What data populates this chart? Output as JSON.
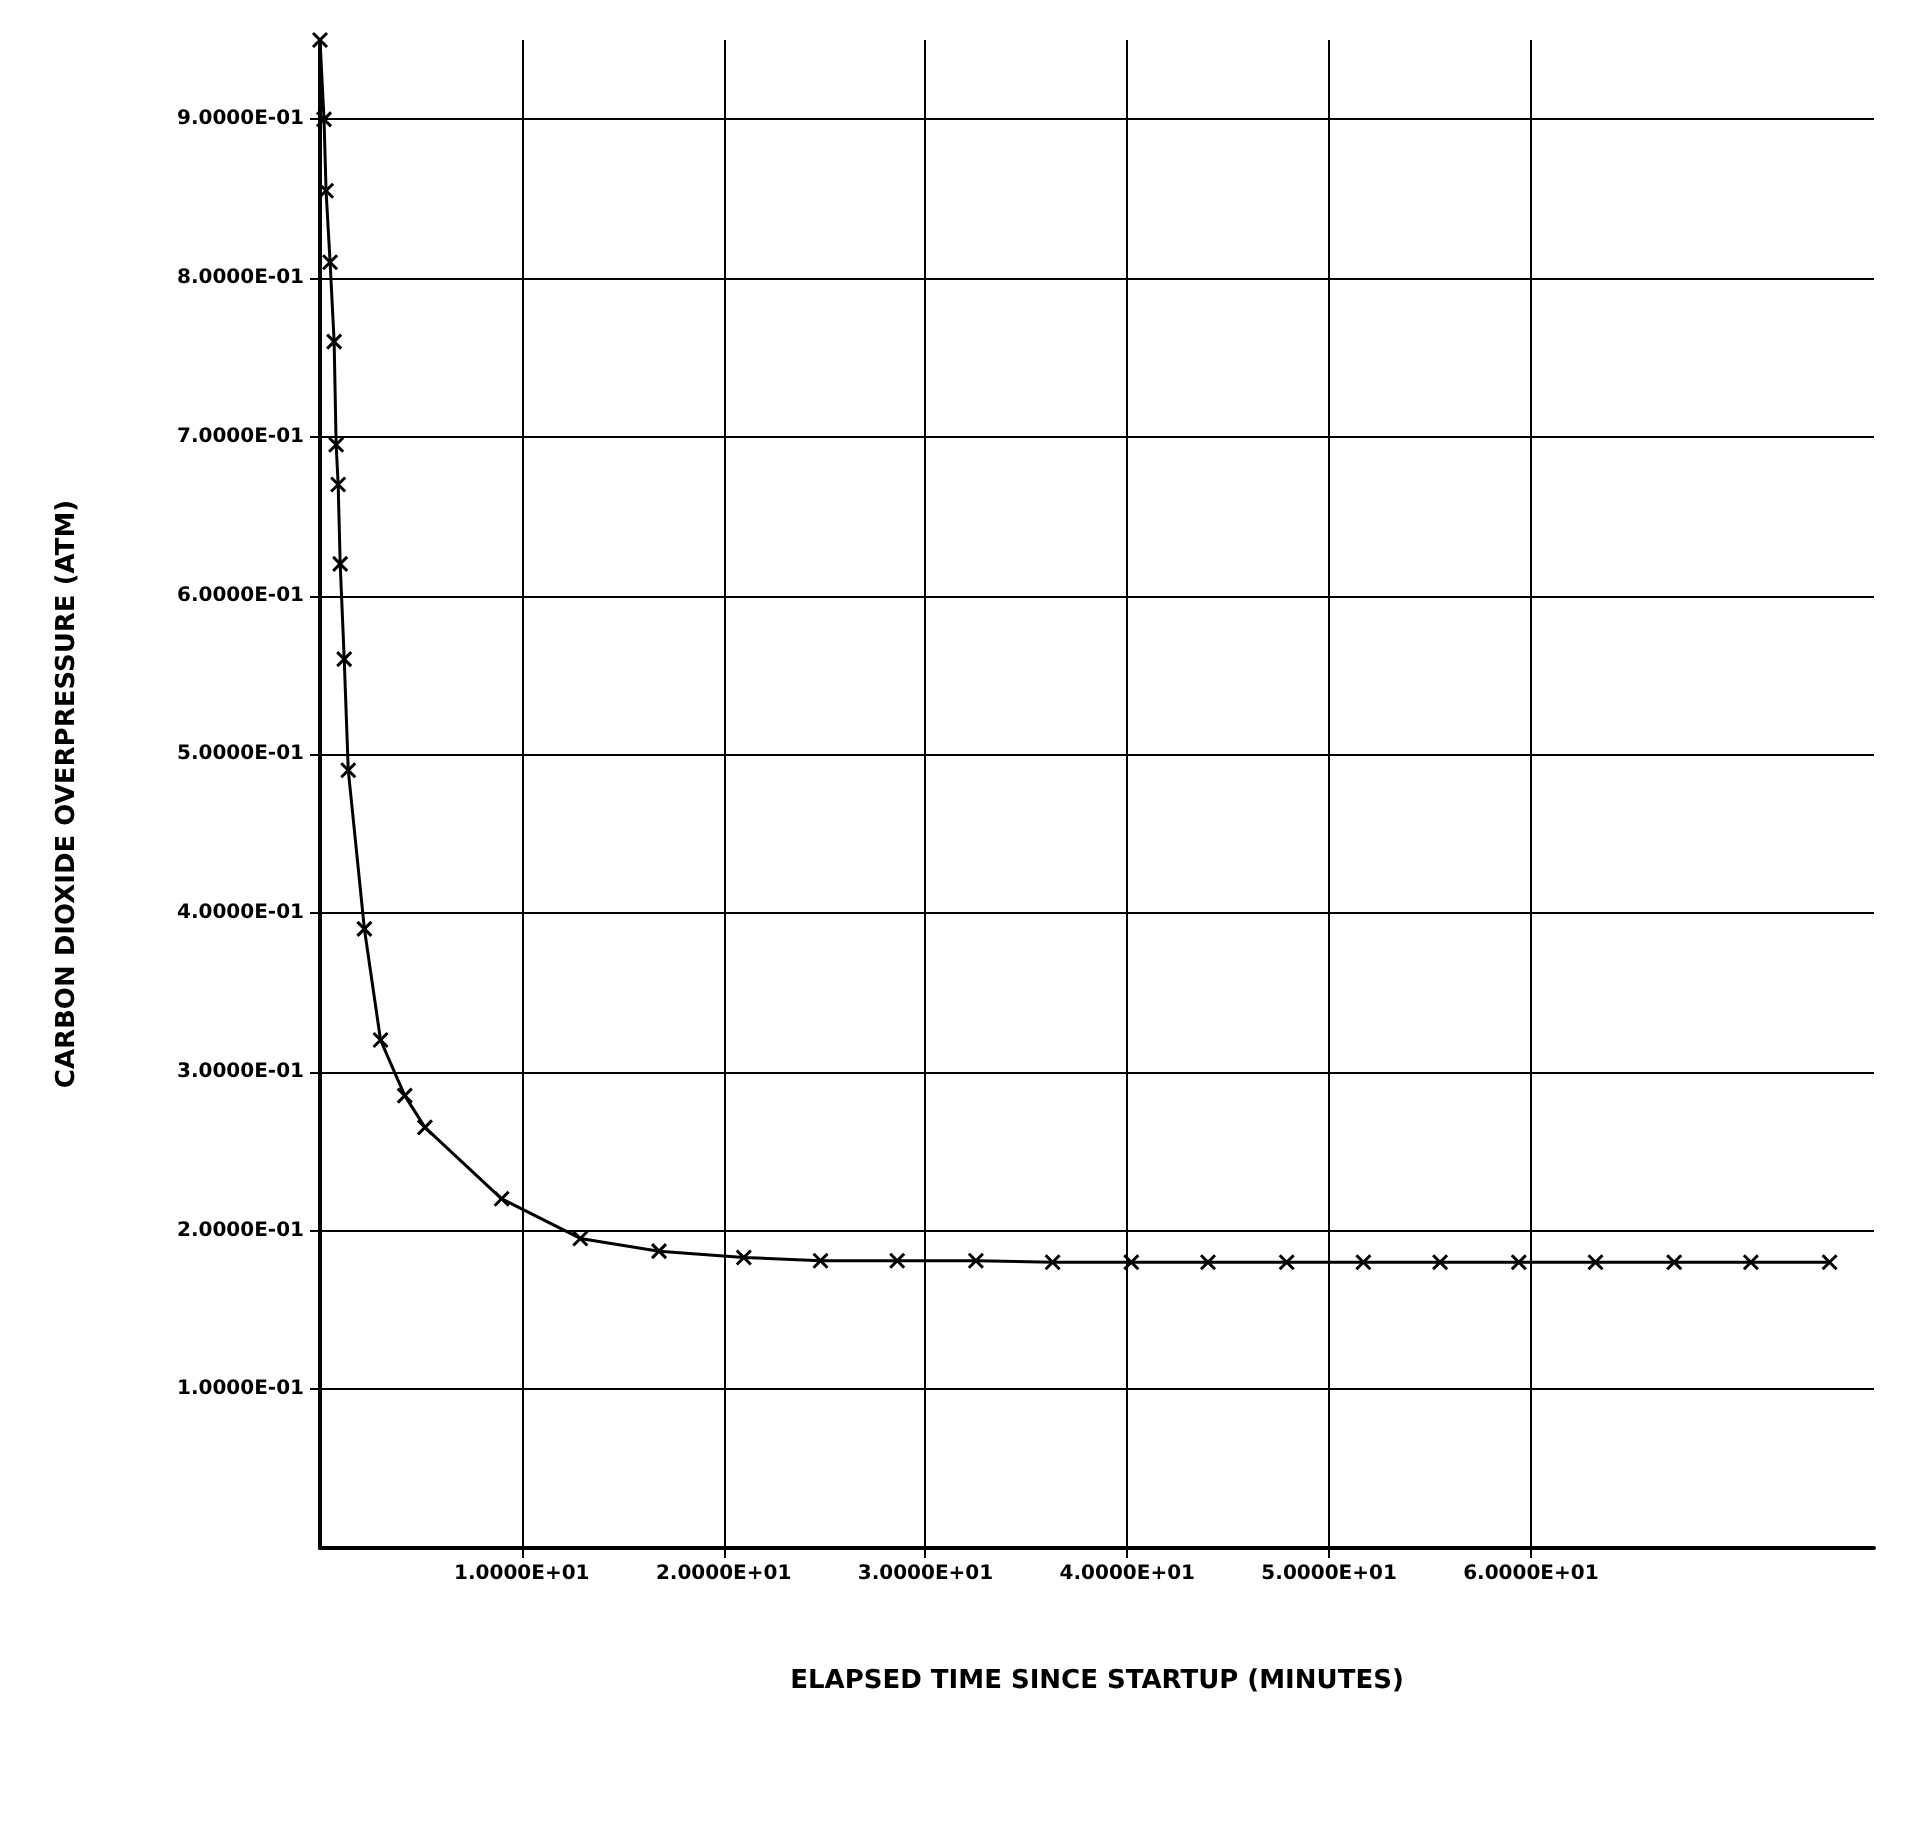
{
  "chart_data": {
    "type": "line",
    "xlabel": "ELAPSED TIME SINCE STARTUP (MINUTES)",
    "ylabel": "CARBON DIOXIDE OVERPRESSURE (ATM)",
    "xlim": [
      0,
      77
    ],
    "ylim": [
      0,
      0.95
    ],
    "xticks": [
      {
        "value": 10,
        "label": "1.0000E+01"
      },
      {
        "value": 20,
        "label": "2.0000E+01"
      },
      {
        "value": 30,
        "label": "3.0000E+01"
      },
      {
        "value": 40,
        "label": "4.0000E+01"
      },
      {
        "value": 50,
        "label": "5.0000E+01"
      },
      {
        "value": 60,
        "label": "6.0000E+01"
      }
    ],
    "yticks": [
      {
        "value": 0.1,
        "label": "1.0000E-01"
      },
      {
        "value": 0.2,
        "label": "2.0000E-01"
      },
      {
        "value": 0.3,
        "label": "3.0000E-01"
      },
      {
        "value": 0.4,
        "label": "4.0000E-01"
      },
      {
        "value": 0.5,
        "label": "5.0000E-01"
      },
      {
        "value": 0.6,
        "label": "6.0000E-01"
      },
      {
        "value": 0.7,
        "label": "7.0000E-01"
      },
      {
        "value": 0.8,
        "label": "8.0000E-01"
      },
      {
        "value": 0.9,
        "label": "9.0000E-01"
      }
    ],
    "grid": true,
    "marker": "cross",
    "line_style": "solid",
    "series": [
      {
        "color": "#000000",
        "x": [
          0,
          0.2,
          0.3,
          0.5,
          0.7,
          0.8,
          0.9,
          1.0,
          1.2,
          1.4,
          2.2,
          3.0,
          4.2,
          5.2,
          9.0,
          12.9,
          16.8,
          21.0,
          24.8,
          28.6,
          32.5,
          36.3,
          40.2,
          44.0,
          47.9,
          51.7,
          55.5,
          59.4,
          63.2,
          67.1,
          70.9,
          74.8
        ],
        "values": [
          0.95,
          0.9,
          0.855,
          0.81,
          0.76,
          0.695,
          0.67,
          0.62,
          0.56,
          0.49,
          0.39,
          0.32,
          0.285,
          0.265,
          0.22,
          0.195,
          0.187,
          0.183,
          0.181,
          0.181,
          0.181,
          0.18,
          0.18,
          0.18,
          0.18,
          0.18,
          0.18,
          0.18,
          0.18,
          0.18,
          0.18,
          0.18
        ]
      }
    ]
  }
}
